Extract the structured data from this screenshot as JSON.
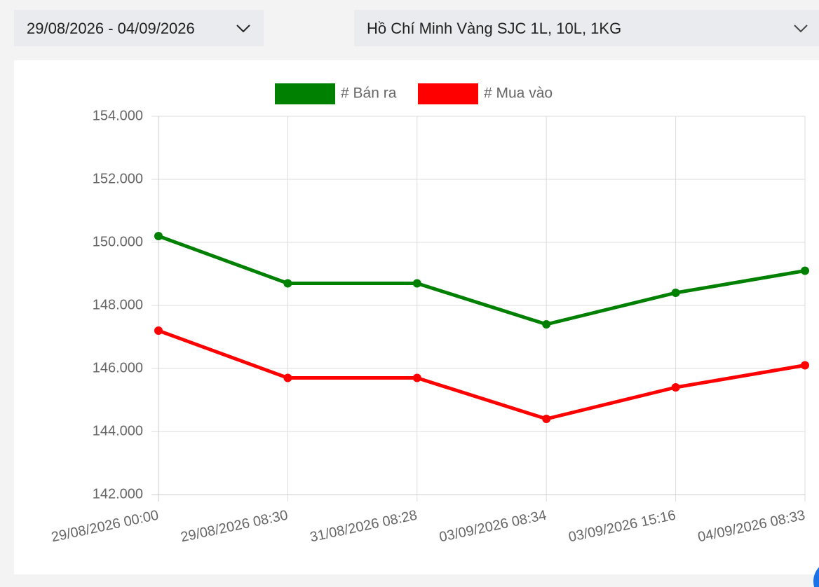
{
  "controls": {
    "date_range": "29/08/2026 - 04/09/2026",
    "product": "Hồ Chí Minh Vàng SJC 1L, 10L, 1KG"
  },
  "chart_data": {
    "type": "line",
    "categories": [
      "29/08/2026 00:00",
      "29/08/2026 08:30",
      "31/08/2026 08:28",
      "03/09/2026 08:34",
      "03/09/2026 15:16",
      "04/09/2026 08:33"
    ],
    "series": [
      {
        "name": "# Bán ra",
        "color": "#008000",
        "values": [
          150200,
          148700,
          148700,
          147400,
          148400,
          149100
        ]
      },
      {
        "name": "# Mua vào",
        "color": "#ff0000",
        "values": [
          147200,
          145700,
          145700,
          144400,
          145400,
          146100
        ]
      }
    ],
    "ylim": [
      142000,
      154000
    ],
    "yticks": [
      {
        "value": 142000,
        "label": "142.000"
      },
      {
        "value": 144000,
        "label": "144.000"
      },
      {
        "value": 146000,
        "label": "146.000"
      },
      {
        "value": 148000,
        "label": "148.000"
      },
      {
        "value": 150000,
        "label": "150.000"
      },
      {
        "value": 152000,
        "label": "152.000"
      },
      {
        "value": 154000,
        "label": "154.000"
      }
    ],
    "grid": true,
    "legend": "top"
  }
}
